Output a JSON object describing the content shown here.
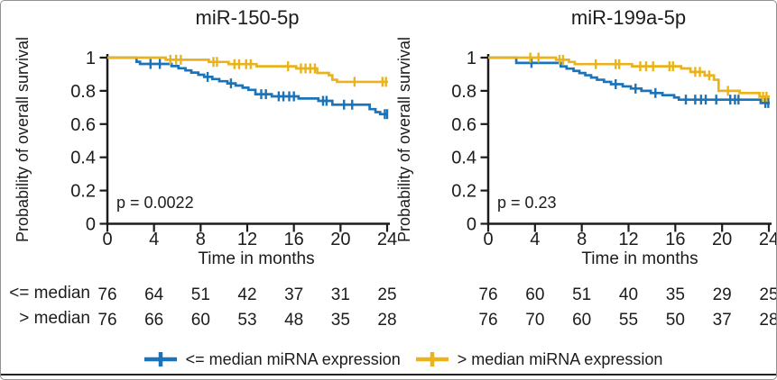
{
  "figure": {
    "y_axis_label": "Probability of overall survival",
    "x_axis_label": "Time in months"
  },
  "colors": {
    "blue": "#1B74B9",
    "yellow": "#EAB31B",
    "text": "#1C1C1C",
    "axis": "#1C1C1C"
  },
  "legend": {
    "items": [
      {
        "label": "<= median miRNA expression",
        "color": "#1B74B9"
      },
      {
        "label": "> median miRNA expression",
        "color": "#EAB31B"
      }
    ]
  },
  "risk_table": {
    "row_labels": [
      "<= median",
      "> median"
    ],
    "time_points": [
      0,
      4,
      8,
      12,
      16,
      20,
      24
    ],
    "panels": [
      {
        "rows": [
          [
            76,
            64,
            51,
            42,
            37,
            31,
            25
          ],
          [
            76,
            66,
            60,
            53,
            48,
            35,
            28
          ]
        ]
      },
      {
        "rows": [
          [
            76,
            60,
            51,
            40,
            35,
            29,
            25
          ],
          [
            76,
            70,
            60,
            55,
            50,
            37,
            28
          ]
        ]
      }
    ]
  },
  "chart_data": [
    {
      "type": "line",
      "subtype": "kaplan_meier_step",
      "title": "miR-150-5p",
      "p_value_label": "p = 0.0022",
      "xlabel": "Time in months",
      "ylabel": "Probability of overall survival",
      "xlim": [
        0,
        24
      ],
      "ylim": [
        0,
        1
      ],
      "xticks": [
        0,
        4,
        8,
        12,
        16,
        20,
        24
      ],
      "yticks": [
        0,
        0.2,
        0.4,
        0.6,
        0.8,
        1
      ],
      "ytick_labels": [
        "0",
        "0.2",
        "0.4",
        "0.6",
        "0.8",
        "1"
      ],
      "grid": false,
      "series": [
        {
          "name": "<= median miRNA expression",
          "color": "#1B74B9",
          "steps": [
            [
              0,
              1
            ],
            [
              2.5,
              0.975
            ],
            [
              2.8,
              0.962
            ],
            [
              5.5,
              0.949
            ],
            [
              6.1,
              0.936
            ],
            [
              6.7,
              0.923
            ],
            [
              7.2,
              0.91
            ],
            [
              7.8,
              0.897
            ],
            [
              8.3,
              0.884
            ],
            [
              9.0,
              0.871
            ],
            [
              9.6,
              0.858
            ],
            [
              10.3,
              0.845
            ],
            [
              11.0,
              0.832
            ],
            [
              11.6,
              0.819
            ],
            [
              12.1,
              0.806
            ],
            [
              12.7,
              0.78
            ],
            [
              14.1,
              0.767
            ],
            [
              16.4,
              0.754
            ],
            [
              18.1,
              0.74
            ],
            [
              19.3,
              0.717
            ],
            [
              22.5,
              0.69
            ],
            [
              23.0,
              0.672
            ],
            [
              23.4,
              0.66
            ]
          ],
          "censors": [
            [
              3.7,
              0.962
            ],
            [
              4.5,
              0.962
            ],
            [
              8.6,
              0.884
            ],
            [
              10.6,
              0.845
            ],
            [
              13.2,
              0.78
            ],
            [
              13.6,
              0.78
            ],
            [
              14.7,
              0.767
            ],
            [
              15.1,
              0.767
            ],
            [
              15.6,
              0.767
            ],
            [
              16.0,
              0.767
            ],
            [
              18.5,
              0.74
            ],
            [
              18.8,
              0.74
            ],
            [
              20.3,
              0.717
            ],
            [
              21.0,
              0.717
            ],
            [
              23.8,
              0.66
            ],
            [
              24,
              0.66
            ]
          ]
        },
        {
          "name": "> median miRNA expression",
          "color": "#EAB31B",
          "steps": [
            [
              0,
              1
            ],
            [
              5.0,
              0.987
            ],
            [
              8.7,
              0.974
            ],
            [
              10.4,
              0.961
            ],
            [
              12.8,
              0.948
            ],
            [
              16.2,
              0.935
            ],
            [
              18.0,
              0.908
            ],
            [
              19.0,
              0.894
            ],
            [
              19.3,
              0.867
            ],
            [
              19.7,
              0.854
            ]
          ],
          "censors": [
            [
              5.4,
              0.987
            ],
            [
              5.9,
              0.987
            ],
            [
              6.3,
              0.987
            ],
            [
              9.1,
              0.974
            ],
            [
              9.4,
              0.974
            ],
            [
              10.9,
              0.961
            ],
            [
              11.3,
              0.961
            ],
            [
              11.9,
              0.961
            ],
            [
              12.3,
              0.961
            ],
            [
              15.5,
              0.948
            ],
            [
              16.6,
              0.935
            ],
            [
              17.0,
              0.935
            ],
            [
              17.4,
              0.935
            ],
            [
              17.8,
              0.935
            ],
            [
              21.2,
              0.854
            ],
            [
              23.6,
              0.854
            ],
            [
              23.9,
              0.854
            ]
          ]
        }
      ]
    },
    {
      "type": "line",
      "subtype": "kaplan_meier_step",
      "title": "miR-199a-5p",
      "p_value_label": "p = 0.23",
      "xlabel": "Time in months",
      "ylabel": "Probability of overall survival",
      "xlim": [
        0,
        24
      ],
      "ylim": [
        0,
        1
      ],
      "xticks": [
        0,
        4,
        8,
        12,
        16,
        20,
        24
      ],
      "yticks": [
        0,
        0.2,
        0.4,
        0.6,
        0.8,
        1
      ],
      "ytick_labels": [
        "0",
        "0.2",
        "0.4",
        "0.6",
        "0.8",
        "1"
      ],
      "grid": false,
      "series": [
        {
          "name": "<= median miRNA expression",
          "color": "#1B74B9",
          "steps": [
            [
              0,
              1
            ],
            [
              2.4,
              0.968
            ],
            [
              6.2,
              0.947
            ],
            [
              6.7,
              0.934
            ],
            [
              7.3,
              0.92
            ],
            [
              7.8,
              0.907
            ],
            [
              8.3,
              0.894
            ],
            [
              8.8,
              0.88
            ],
            [
              9.3,
              0.867
            ],
            [
              9.9,
              0.854
            ],
            [
              10.5,
              0.84
            ],
            [
              11.5,
              0.827
            ],
            [
              12.2,
              0.814
            ],
            [
              13.1,
              0.8
            ],
            [
              13.9,
              0.787
            ],
            [
              14.9,
              0.774
            ],
            [
              15.9,
              0.76
            ],
            [
              16.3,
              0.747
            ],
            [
              23.3,
              0.727
            ]
          ],
          "censors": [
            [
              3.7,
              0.968
            ],
            [
              10.9,
              0.84
            ],
            [
              12.6,
              0.814
            ],
            [
              14.3,
              0.787
            ],
            [
              16.9,
              0.747
            ],
            [
              17.7,
              0.747
            ],
            [
              18.2,
              0.747
            ],
            [
              18.6,
              0.747
            ],
            [
              19.5,
              0.747
            ],
            [
              20.7,
              0.747
            ],
            [
              21.1,
              0.747
            ],
            [
              21.4,
              0.747
            ],
            [
              23.7,
              0.727
            ],
            [
              23.95,
              0.727
            ]
          ]
        },
        {
          "name": "> median miRNA expression",
          "color": "#EAB31B",
          "steps": [
            [
              0,
              1
            ],
            [
              5.8,
              0.987
            ],
            [
              6.9,
              0.974
            ],
            [
              7.4,
              0.961
            ],
            [
              12.3,
              0.948
            ],
            [
              16.5,
              0.935
            ],
            [
              17.3,
              0.914
            ],
            [
              18.5,
              0.893
            ],
            [
              19.3,
              0.867
            ],
            [
              19.7,
              0.8
            ],
            [
              21.5,
              0.787
            ],
            [
              23.2,
              0.765
            ]
          ],
          "censors": [
            [
              3.6,
              1
            ],
            [
              4.3,
              1
            ],
            [
              6.1,
              0.987
            ],
            [
              6.4,
              0.987
            ],
            [
              9.2,
              0.961
            ],
            [
              10.9,
              0.961
            ],
            [
              11.2,
              0.961
            ],
            [
              13.0,
              0.948
            ],
            [
              13.5,
              0.948
            ],
            [
              14.1,
              0.948
            ],
            [
              15.5,
              0.948
            ],
            [
              15.8,
              0.948
            ],
            [
              17.7,
              0.914
            ],
            [
              18.1,
              0.914
            ],
            [
              18.9,
              0.893
            ],
            [
              20.5,
              0.8
            ],
            [
              23.5,
              0.765
            ],
            [
              23.8,
              0.765
            ]
          ]
        }
      ]
    }
  ]
}
